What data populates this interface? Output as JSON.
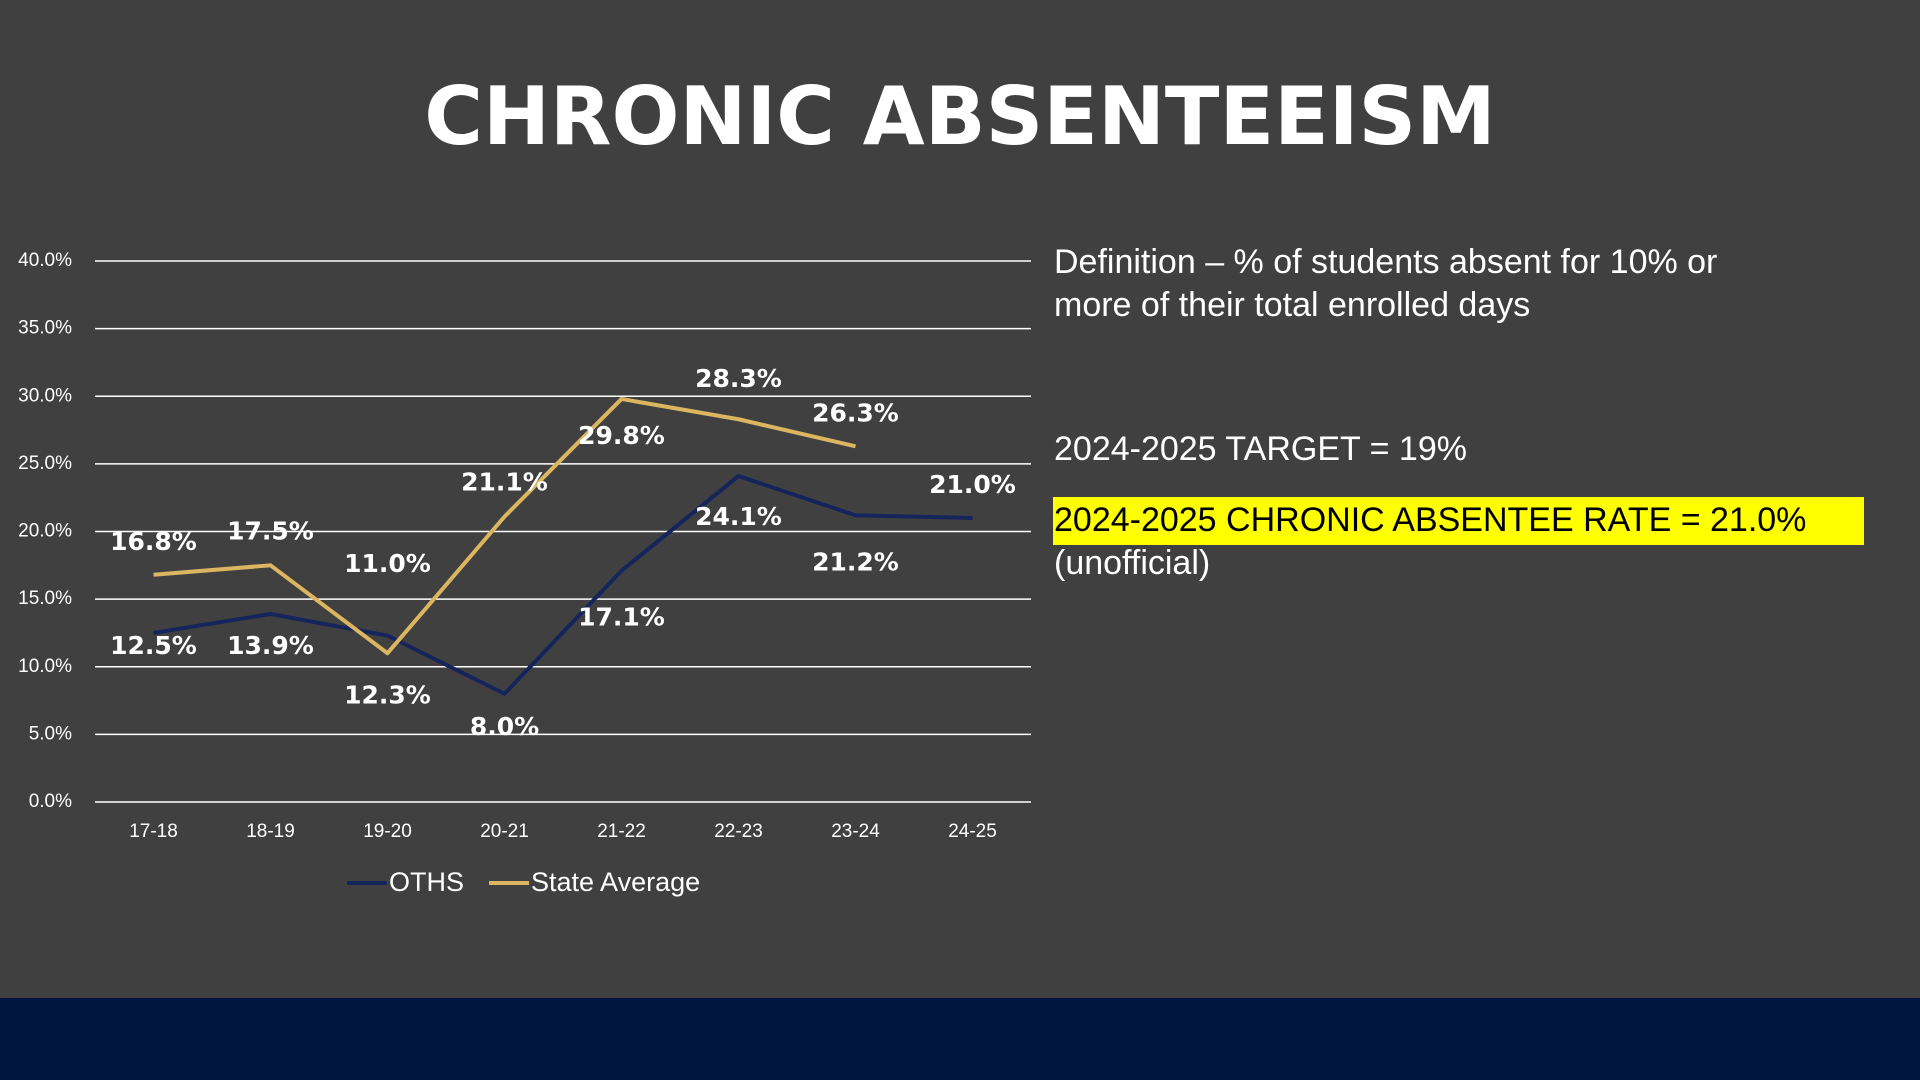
{
  "title": "CHRONIC ABSENTEEISM",
  "notes": {
    "definition": [
      "Definition – % of students absent for 10% or",
      "more of their total enrolled days"
    ],
    "target": "2024-2025 TARGET = 19%",
    "rate": "2024-2025 CHRONIC ABSENTEE RATE = 21.0%",
    "rate_note": "(unofficial)"
  },
  "chart_data": {
    "type": "line",
    "categories": [
      "17-18",
      "18-19",
      "19-20",
      "20-21",
      "21-22",
      "22-23",
      "23-24",
      "24-25"
    ],
    "series": [
      {
        "name": "OTHS",
        "color": "#15255c",
        "values": [
          12.5,
          13.9,
          12.3,
          8.0,
          17.1,
          24.1,
          21.2,
          21.0
        ],
        "value_labels": [
          "12.5%",
          "13.9%",
          "12.3%",
          "8.0%",
          "17.1%",
          "24.1%",
          "21.2%",
          "21.0%"
        ]
      },
      {
        "name": "State Average",
        "color": "#dcb561",
        "values": [
          16.8,
          17.5,
          11.0,
          21.1,
          29.8,
          28.3,
          26.3,
          null
        ],
        "value_labels": [
          "16.8%",
          "17.5%",
          "11.0%",
          "21.1%",
          "29.8%",
          "28.3%",
          "26.3%",
          null
        ]
      }
    ],
    "ylim": [
      0,
      40
    ],
    "yticks": [
      {
        "value": 0,
        "label": "0.0%"
      },
      {
        "value": 5,
        "label": "5.0%"
      },
      {
        "value": 10,
        "label": "10.0%"
      },
      {
        "value": 15,
        "label": "15.0%"
      },
      {
        "value": 20,
        "label": "20.0%"
      },
      {
        "value": 25,
        "label": "25.0%"
      },
      {
        "value": 30,
        "label": "30.0%"
      },
      {
        "value": 35,
        "label": "35.0%"
      },
      {
        "value": 40,
        "label": "40.0%"
      }
    ],
    "grid": true,
    "legend": "bottom"
  }
}
